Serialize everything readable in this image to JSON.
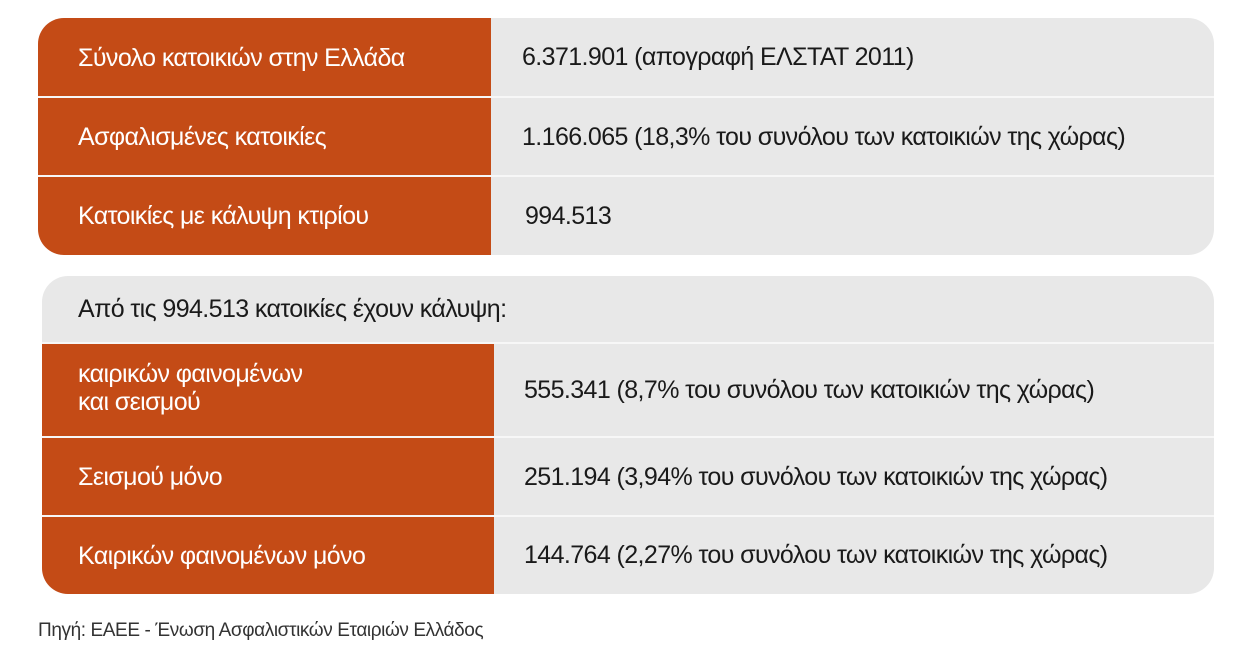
{
  "colors": {
    "accent": "#c44b16",
    "panel_bg": "#e8e8e8",
    "text": "#1a1a1a",
    "label_text": "#ffffff"
  },
  "summary_table": {
    "rows": [
      {
        "label": "Σύνολο κατοικιών στην Ελλάδα",
        "value": "6.371.901 (απογραφή ΕΛΣΤΑΤ 2011)"
      },
      {
        "label": "Ασφαλισμένες κατοικίες",
        "value": "1.166.065 (18,3% του συνόλου των κατοικιών της χώρας)"
      },
      {
        "label": "Κατοικίες με κάλυψη κτιρίου",
        "value": "994.513"
      }
    ]
  },
  "coverage_table": {
    "header": "Από τις 994.513 κατοικίες έχουν κάλυψη:",
    "rows": [
      {
        "label_line1": "καιρικών φαινομένων",
        "label_line2": "και σεισμού",
        "value": "555.341 (8,7% του συνόλου των κατοικιών της χώρας)"
      },
      {
        "label_line1": "Σεισμού μόνο",
        "label_line2": "",
        "value": "251.194 (3,94% του συνόλου των κατοικιών της χώρας)"
      },
      {
        "label_line1": "Καιρικών φαινομένων μόνο",
        "label_line2": "",
        "value": "144.764 (2,27% του συνόλου των κατοικιών της χώρας)"
      }
    ]
  },
  "source": "Πηγή: ΕΑΕΕ - Ένωση Ασφαλιστικών Εταιριών Ελλάδος"
}
